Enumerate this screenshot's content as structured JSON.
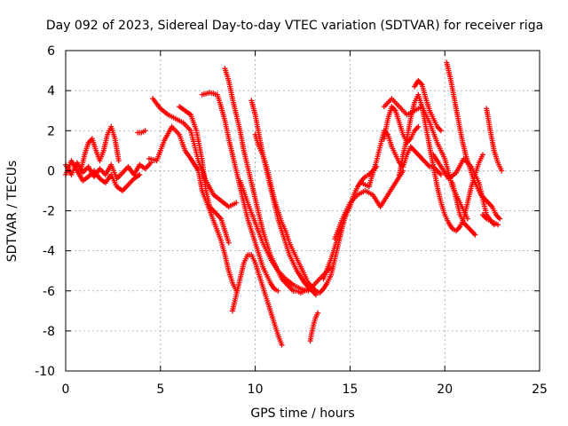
{
  "chart_data": {
    "type": "scatter",
    "title": "Day 092 of 2023, Sidereal Day-to-day VTEC variation (SDTVAR) for receiver riga",
    "xlabel": "GPS time / hours",
    "ylabel": "SDTVAR / TECUs",
    "xlim": [
      0,
      25
    ],
    "ylim": [
      -10,
      6
    ],
    "xticks": [
      "0",
      "5",
      "10",
      "15",
      "20",
      "25"
    ],
    "yticks": [
      "-10",
      "-8",
      "-6",
      "-4",
      "-2",
      "0",
      "2",
      "4",
      "6"
    ],
    "grid": true,
    "marker": "plus",
    "color": "#ff0000",
    "series": [
      {
        "x": [
          0.0,
          0.3,
          0.6,
          0.9,
          1.2,
          1.5,
          1.8,
          2.1,
          2.4,
          2.7,
          3.0,
          3.3,
          3.6,
          3.9,
          4.2,
          4.5
        ],
        "y": [
          0.3,
          -0.2,
          0.4,
          -0.1,
          0.2,
          -0.3,
          0.1,
          -0.2,
          0.3,
          -0.4,
          -0.1,
          0.2,
          -0.2,
          0.3,
          0.1,
          0.4
        ]
      },
      {
        "x": [
          0.0,
          0.3,
          0.6,
          0.9,
          1.2,
          1.5,
          1.8,
          2.1,
          2.4,
          2.7,
          3.0,
          3.3,
          3.6,
          3.9
        ],
        "y": [
          -0.2,
          0.5,
          0.0,
          -0.5,
          -0.3,
          0.0,
          -0.4,
          -0.6,
          -0.2,
          -0.8,
          -1.0,
          -0.7,
          -0.4,
          -0.2
        ]
      },
      {
        "x": [
          0.8,
          1.0,
          1.2,
          1.4,
          1.6,
          1.8,
          2.0,
          2.2,
          2.4,
          2.6,
          2.8
        ],
        "y": [
          0.0,
          0.8,
          1.4,
          1.6,
          1.0,
          0.5,
          1.0,
          1.8,
          2.2,
          1.6,
          0.5
        ]
      },
      {
        "x": [
          3.8,
          4.0,
          4.2
        ],
        "y": [
          1.9,
          1.9,
          2.0
        ]
      },
      {
        "x": [
          4.6,
          5.0,
          5.4,
          5.8,
          6.2,
          6.6,
          7.0,
          7.4,
          7.8,
          8.2,
          8.6,
          8.8,
          9.0
        ],
        "y": [
          3.6,
          3.1,
          2.8,
          2.6,
          2.4,
          2.0,
          0.5,
          -0.5,
          -1.2,
          -1.5,
          -1.8,
          -1.7,
          -1.6
        ]
      },
      {
        "x": [
          6.0,
          6.3,
          6.6,
          6.9,
          7.2,
          7.4,
          7.6,
          7.8,
          8.0,
          8.2,
          8.4,
          8.6
        ],
        "y": [
          3.2,
          3.0,
          2.8,
          2.0,
          0.5,
          -1.0,
          -1.8,
          -2.0,
          -2.2,
          -2.4,
          -3.0,
          -3.6
        ]
      },
      {
        "x": [
          4.4,
          4.8,
          5.2,
          5.6,
          6.0,
          6.3,
          6.6,
          6.8,
          7.0,
          7.2,
          7.4,
          7.6,
          7.8,
          8.0,
          8.2,
          8.4,
          8.6,
          8.8,
          9.0
        ],
        "y": [
          0.6,
          0.5,
          1.5,
          2.2,
          1.8,
          1.0,
          0.6,
          0.3,
          0.0,
          -1.0,
          -1.5,
          -2.0,
          -2.5,
          -3.0,
          -3.5,
          -4.2,
          -5.0,
          -5.6,
          -6.0
        ]
      },
      {
        "x": [
          7.2,
          7.6,
          8.0,
          8.2,
          8.4,
          8.6,
          8.8,
          9.0,
          9.2,
          9.4,
          9.6,
          9.8,
          10.0,
          10.2,
          10.4,
          10.6,
          10.8,
          11.0,
          11.2
        ],
        "y": [
          3.8,
          3.9,
          3.8,
          3.2,
          2.5,
          1.6,
          0.8,
          0.0,
          -0.8,
          -1.6,
          -2.4,
          -3.0,
          -3.6,
          -4.2,
          -4.8,
          -5.2,
          -5.6,
          -5.9,
          -6.0
        ]
      },
      {
        "x": [
          8.4,
          8.6,
          8.8,
          9.0,
          9.2,
          9.4,
          9.6,
          9.8,
          10.0,
          10.2,
          10.4,
          10.6,
          10.8,
          11.0,
          11.2,
          11.4,
          11.6,
          11.8,
          12.0,
          12.2,
          12.4,
          12.6,
          12.8,
          13.0
        ],
        "y": [
          5.1,
          4.5,
          3.6,
          2.8,
          2.0,
          1.0,
          0.2,
          -0.6,
          -1.4,
          -2.2,
          -3.0,
          -3.6,
          -4.2,
          -4.6,
          -5.0,
          -5.4,
          -5.6,
          -5.8,
          -6.0,
          -6.0,
          -6.1,
          -6.0,
          -5.9,
          -5.8
        ]
      },
      {
        "x": [
          8.8,
          9.0,
          9.2,
          9.4,
          9.6,
          9.8,
          10.0,
          10.2,
          10.4,
          10.6,
          10.8,
          11.0,
          11.2,
          11.4
        ],
        "y": [
          -7.0,
          -6.2,
          -5.4,
          -4.6,
          -4.2,
          -4.2,
          -4.6,
          -5.2,
          -5.8,
          -6.4,
          -7.0,
          -7.6,
          -8.2,
          -8.7
        ]
      },
      {
        "x": [
          9.2,
          9.6,
          10.0,
          10.4,
          10.8,
          11.2,
          11.6,
          12.0,
          12.4,
          12.8,
          13.2,
          13.6,
          14.0
        ],
        "y": [
          -0.5,
          -1.6,
          -2.6,
          -3.6,
          -4.4,
          -5.0,
          -5.4,
          -5.7,
          -5.9,
          -6.0,
          -5.6,
          -5.2,
          -4.8
        ]
      },
      {
        "x": [
          9.8,
          10.0,
          10.2,
          10.4,
          10.6,
          10.8,
          11.0,
          11.2,
          11.4,
          11.6,
          11.8,
          12.0,
          12.2,
          12.4,
          12.6,
          12.8,
          13.0,
          13.2
        ],
        "y": [
          3.5,
          2.8,
          1.8,
          0.8,
          0.0,
          -0.8,
          -1.6,
          -2.4,
          -3.0,
          -3.6,
          -4.2,
          -4.6,
          -5.0,
          -5.3,
          -5.6,
          -5.8,
          -6.0,
          -6.2
        ]
      },
      {
        "x": [
          10.0,
          10.2,
          10.4,
          10.6,
          10.8,
          11.0,
          11.2,
          11.4,
          11.6,
          11.8,
          12.0,
          12.2,
          12.4,
          12.6,
          12.8,
          13.0,
          13.2,
          13.4,
          13.6,
          13.8,
          14.0,
          14.2,
          14.4,
          14.6,
          14.8
        ],
        "y": [
          1.8,
          1.2,
          0.8,
          0.2,
          -0.6,
          -1.4,
          -2.0,
          -2.6,
          -3.0,
          -3.6,
          -4.0,
          -4.4,
          -4.8,
          -5.2,
          -5.6,
          -5.8,
          -6.0,
          -6.1,
          -5.9,
          -5.6,
          -5.2,
          -4.4,
          -3.6,
          -2.8,
          -2.0
        ]
      },
      {
        "x": [
          12.9,
          13.0,
          13.1,
          13.2,
          13.3
        ],
        "y": [
          -8.5,
          -8.0,
          -7.6,
          -7.3,
          -7.1
        ]
      },
      {
        "x": [
          13.6,
          14.0,
          14.4,
          14.8,
          15.0,
          15.2,
          15.4,
          15.6,
          15.8,
          16.0,
          16.2,
          16.4
        ],
        "y": [
          -5.4,
          -4.4,
          -3.2,
          -2.2,
          -1.8,
          -1.2,
          -0.8,
          -0.5,
          -0.3,
          -0.2,
          0.0,
          0.2
        ]
      },
      {
        "x": [
          14.2,
          14.6,
          15.0,
          15.4,
          15.8,
          16.2,
          16.6,
          17.0,
          17.4,
          17.8
        ],
        "y": [
          -3.4,
          -2.4,
          -1.6,
          -1.2,
          -1.0,
          -1.2,
          -1.8,
          -1.2,
          -0.6,
          0.0
        ]
      },
      {
        "x": [
          15.6,
          16.0,
          16.4,
          16.8,
          17.0,
          17.2,
          17.4,
          17.6,
          17.8,
          18.0,
          18.2,
          18.4,
          18.6,
          18.8,
          19.0,
          19.2,
          19.4,
          19.6,
          19.8
        ],
        "y": [
          -0.6,
          -0.8,
          0.5,
          2.0,
          1.8,
          1.2,
          0.8,
          0.4,
          0.2,
          0.8,
          1.2,
          1.0,
          0.8,
          0.6,
          0.4,
          0.2,
          0.2,
          0.0,
          -0.2
        ]
      },
      {
        "x": [
          16.8,
          17.0,
          17.2,
          17.4,
          17.6,
          17.8,
          18.0,
          18.2,
          18.4,
          18.6
        ],
        "y": [
          1.6,
          2.6,
          3.2,
          3.0,
          2.4,
          1.8,
          1.4,
          1.6,
          2.0,
          2.2
        ]
      },
      {
        "x": [
          16.8,
          17.2,
          17.6,
          18.0,
          18.4,
          18.8,
          19.2,
          19.6,
          20.0,
          20.4,
          20.8,
          21.2
        ],
        "y": [
          3.2,
          3.6,
          3.2,
          2.8,
          3.0,
          3.2,
          2.4,
          1.4,
          0.6,
          -0.8,
          -1.6,
          -2.4
        ]
      },
      {
        "x": [
          17.6,
          17.8,
          18.0,
          18.2,
          18.4,
          18.6,
          18.8,
          19.0,
          19.2,
          19.4,
          19.6,
          19.8,
          20.0,
          20.2,
          20.4,
          20.6,
          20.8,
          21.0,
          21.2,
          21.4,
          21.6,
          21.8,
          22.0
        ],
        "y": [
          -0.2,
          0.8,
          1.6,
          2.6,
          3.4,
          3.8,
          3.2,
          2.2,
          1.2,
          0.2,
          -0.8,
          -1.6,
          -2.2,
          -2.6,
          -2.9,
          -3.0,
          -2.8,
          -2.4,
          -1.6,
          -0.8,
          -0.2,
          0.4,
          0.8
        ]
      },
      {
        "x": [
          18.4,
          18.6,
          18.8,
          19.0,
          19.2,
          19.4,
          19.6,
          19.8
        ],
        "y": [
          4.2,
          4.5,
          4.3,
          3.6,
          3.0,
          2.6,
          2.2,
          2.0
        ]
      },
      {
        "x": [
          20.1,
          20.3,
          20.5,
          20.7,
          20.9,
          21.1,
          21.3,
          21.5,
          21.7,
          21.9,
          22.1,
          22.3,
          22.5,
          22.7,
          22.9
        ],
        "y": [
          5.4,
          4.6,
          3.6,
          2.6,
          1.6,
          0.8,
          0.2,
          -0.4,
          -0.8,
          -1.2,
          -1.4,
          -1.6,
          -1.8,
          -2.2,
          -2.4
        ]
      },
      {
        "x": [
          19.4,
          19.8,
          20.2,
          20.6,
          21.0,
          21.4,
          21.8,
          22.2,
          22.6
        ],
        "y": [
          0.8,
          0.2,
          -0.4,
          -0.1,
          0.6,
          0.2,
          -0.6,
          -2.2,
          -2.7
        ]
      },
      {
        "x": [
          22.2,
          22.4,
          22.6,
          22.8,
          23.0
        ],
        "y": [
          3.1,
          2.0,
          1.0,
          0.4,
          0.0
        ]
      },
      {
        "x": [
          20.4,
          20.6,
          20.8,
          21.0,
          21.2,
          21.4,
          21.6
        ],
        "y": [
          -0.6,
          -1.4,
          -2.2,
          -2.6,
          -2.8,
          -3.0,
          -3.2
        ]
      },
      {
        "x": [
          22.0,
          22.2,
          22.4,
          22.6,
          22.8
        ],
        "y": [
          -2.2,
          -2.4,
          -2.5,
          -2.6,
          -2.7
        ]
      }
    ]
  }
}
